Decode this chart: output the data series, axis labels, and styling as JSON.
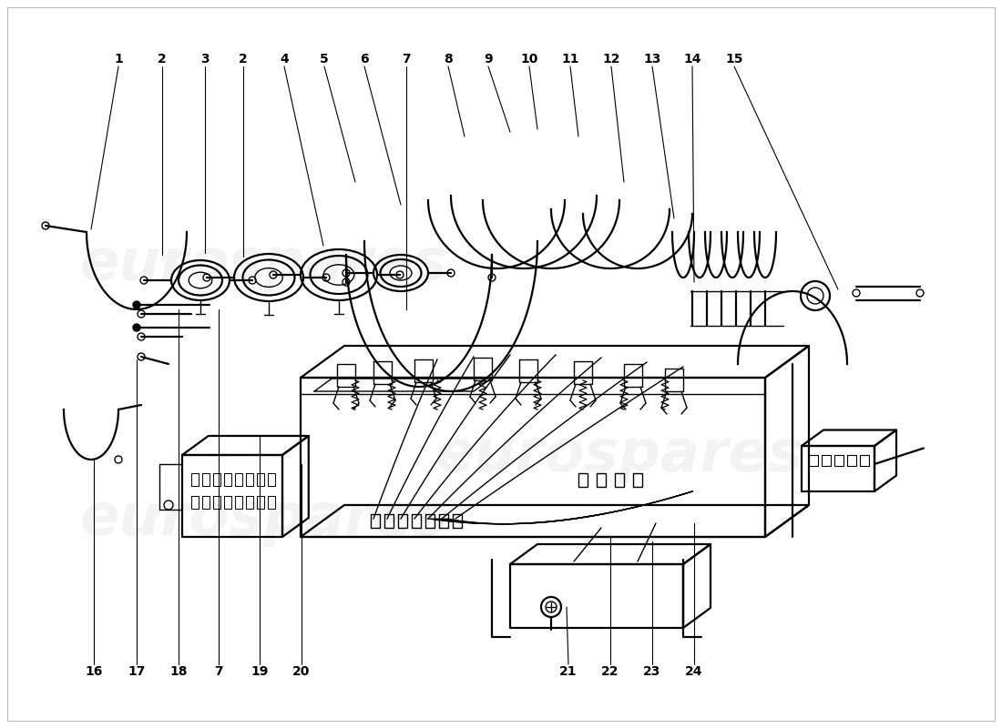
{
  "bg_color": "#ffffff",
  "lc": "#000000",
  "lw": 1.6,
  "lwt": 1.0,
  "top_labels": [
    "1",
    "2",
    "3",
    "2",
    "4",
    "5",
    "6",
    "7",
    "8",
    "9",
    "10",
    "11",
    "12",
    "13",
    "14",
    "15"
  ],
  "top_lx": [
    130,
    178,
    225,
    267,
    312,
    356,
    400,
    446,
    492,
    536,
    581,
    626,
    671,
    716,
    760,
    806
  ],
  "top_ly": [
    65,
    65,
    65,
    65,
    65,
    65,
    65,
    65,
    65,
    65,
    65,
    65,
    65,
    65,
    65,
    65
  ],
  "bot_labels": [
    "16",
    "17",
    "18",
    "7",
    "19",
    "20",
    "21",
    "22",
    "23",
    "24"
  ],
  "bot_lx": [
    103,
    150,
    196,
    240,
    285,
    331,
    624,
    670,
    716,
    762
  ],
  "bot_ly": [
    738,
    738,
    738,
    738,
    738,
    738,
    738,
    738,
    738,
    738
  ]
}
